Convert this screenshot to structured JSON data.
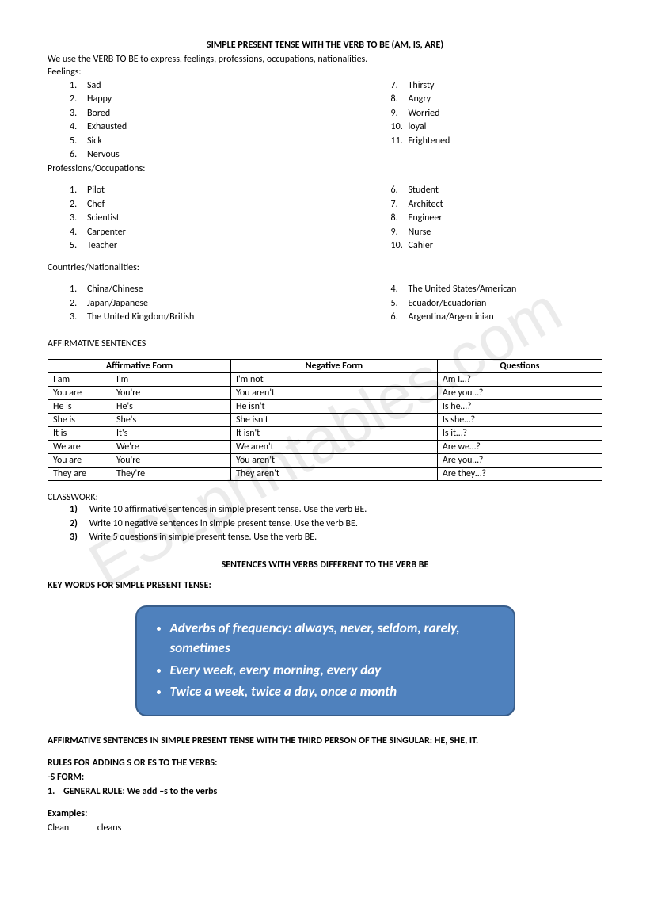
{
  "watermark": "ESLprintables.com",
  "title": "SIMPLE PRESENT TENSE WITH THE VERB TO BE (AM, IS, ARE)",
  "intro": "We use the VERB TO BE to express, feelings, professions, occupations, nationalities.",
  "feelings_label": "Feelings:",
  "feelings_left": [
    {
      "n": "1.",
      "t": "Sad"
    },
    {
      "n": "2.",
      "t": "Happy"
    },
    {
      "n": "3.",
      "t": "Bored"
    },
    {
      "n": "4.",
      "t": "Exhausted"
    },
    {
      "n": "5.",
      "t": "Sick"
    },
    {
      "n": "6.",
      "t": "Nervous"
    }
  ],
  "feelings_right": [
    {
      "n": "7.",
      "t": "Thirsty"
    },
    {
      "n": "8.",
      "t": "Angry"
    },
    {
      "n": "9.",
      "t": "Worried"
    },
    {
      "n": "10.",
      "t": "loyal"
    },
    {
      "n": "11.",
      "t": "Frightened"
    }
  ],
  "prof_label": "Professions/Occupations:",
  "prof_left": [
    {
      "n": "1.",
      "t": "Pilot"
    },
    {
      "n": "2.",
      "t": "Chef"
    },
    {
      "n": "3.",
      "t": "Scientist"
    },
    {
      "n": "4.",
      "t": "Carpenter"
    },
    {
      "n": "5.",
      "t": "Teacher"
    }
  ],
  "prof_right": [
    {
      "n": "6.",
      "t": "Student"
    },
    {
      "n": "7.",
      "t": "Architect"
    },
    {
      "n": "8.",
      "t": "Engineer"
    },
    {
      "n": "9.",
      "t": "Nurse"
    },
    {
      "n": "10.",
      "t": "Cahier"
    }
  ],
  "nat_label": "Countries/Nationalities:",
  "nat_left": [
    {
      "n": "1.",
      "t": "China/Chinese"
    },
    {
      "n": "2.",
      "t": "Japan/Japanese"
    },
    {
      "n": "3.",
      "t": "The United Kingdom/British"
    }
  ],
  "nat_right": [
    {
      "n": "4.",
      "t": "The United States/American"
    },
    {
      "n": "5.",
      "t": "Ecuador/Ecuadorian"
    },
    {
      "n": "6.",
      "t": "Argentina/Argentinian"
    }
  ],
  "aff_heading": "AFFIRMATIVE SENTENCES",
  "table": {
    "headers": [
      "Affirmative Form",
      "Negative Form",
      "Questions"
    ],
    "rows": [
      {
        "full": "I am",
        "short": "I'm",
        "neg": "I'm not",
        "q": "Am I…?"
      },
      {
        "full": "You are",
        "short": "You're",
        "neg": "You aren't",
        "q": "Are you…?"
      },
      {
        "full": "He is",
        "short": "He's",
        "neg": "He isn't",
        "q": "Is he…?"
      },
      {
        "full": "She is",
        "short": "She's",
        "neg": "She isn't",
        "q": "Is she…?"
      },
      {
        "full": "It is",
        "short": "It's",
        "neg": "It isn't",
        "q": "Is it…?"
      },
      {
        "full": "We are",
        "short": "We're",
        "neg": "We aren't",
        "q": "Are we…?"
      },
      {
        "full": "You are",
        "short": "You're",
        "neg": "You aren't",
        "q": "Are you…?"
      },
      {
        "full": "They are",
        "short": "They're",
        "neg": "They aren't",
        "q": "Are they…?"
      }
    ]
  },
  "classwork_label": "CLASSWORK:",
  "classwork": [
    {
      "n": "1)",
      "t": "Write 10 affirmative sentences in simple present tense. Use the verb BE."
    },
    {
      "n": "2)",
      "t": "Write 10 negative sentences in simple present tense. Use the verb BE."
    },
    {
      "n": "3)",
      "t": "Write 5 questions in simple present tense. Use the verb BE."
    }
  ],
  "sub_title": "SENTENCES WITH VERBS DIFFERENT TO THE VERB BE",
  "keywords_label": "KEY WORDS FOR SIMPLE PRESENT TENSE:",
  "keybox": [
    "Adverbs of frequency: always, never, seldom, rarely, sometimes",
    "Every week, every morning, every day",
    "Twice a week, twice a day, once a month"
  ],
  "aff3_heading": "AFFIRMATIVE SENTENCES IN SIMPLE PRESENT TENSE WITH THE THIRD PERSON OF THE SINGULAR: HE, SHE, IT.",
  "rules_heading": "RULES FOR ADDING S OR ES TO THE VERBS:",
  "sform": "-S FORM:",
  "rule1_n": "1.",
  "rule1": "GENERAL RULE: We add –s to the verbs",
  "examples_label": "Examples:",
  "ex_w1": "Clean",
  "ex_w2": "cleans"
}
